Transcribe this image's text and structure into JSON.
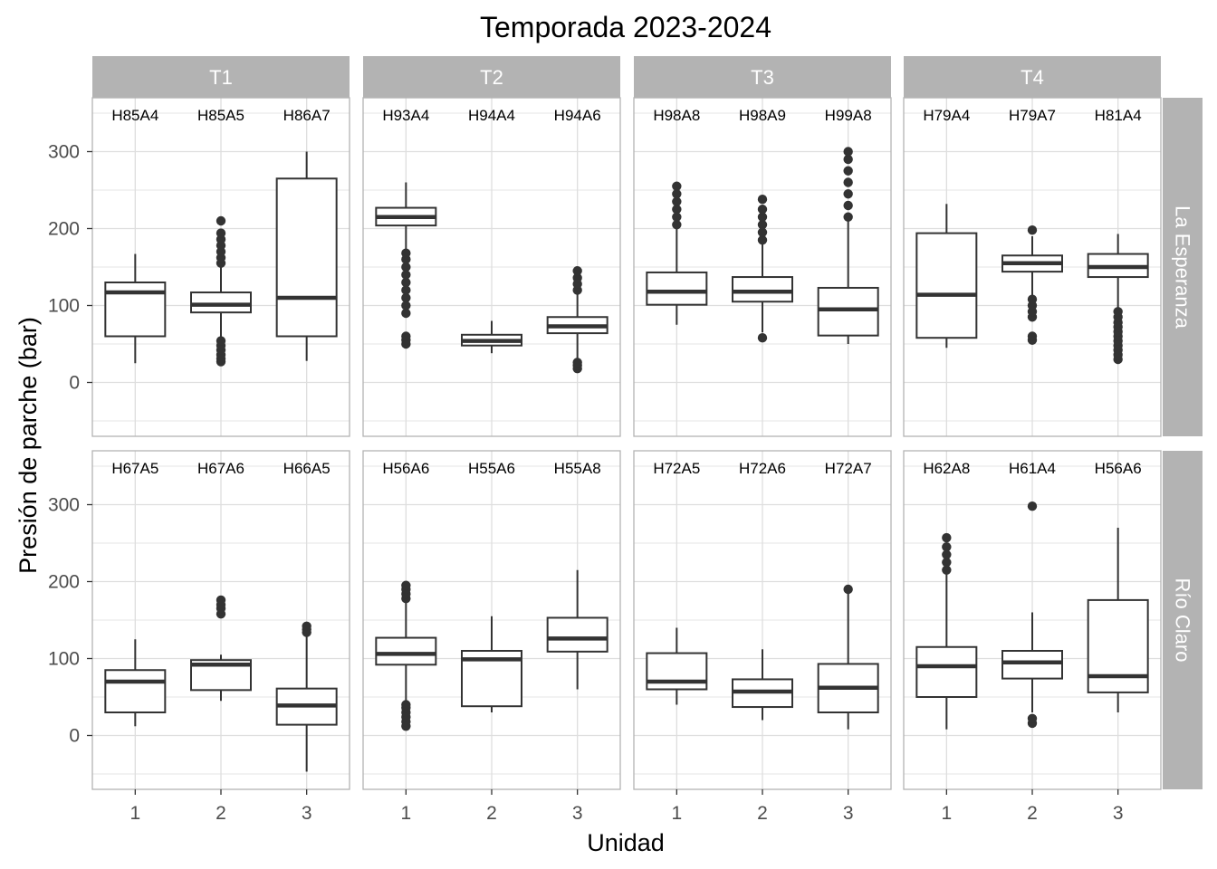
{
  "chart_data": {
    "type": "boxplot",
    "title": "Temporada 2023-2024",
    "xlabel": "Unidad",
    "ylabel": "Presión de parche (bar)",
    "ylim": [
      -70,
      370
    ],
    "yticks": [
      0,
      100,
      200,
      300
    ],
    "x_categories": [
      "1",
      "2",
      "3"
    ],
    "col_facets": [
      "T1",
      "T2",
      "T3",
      "T4"
    ],
    "row_facets": [
      "La Esperanza",
      "Río Claro"
    ],
    "grid": true,
    "colors": {
      "strip_bg": "#b3b3b3",
      "strip_text": "#ffffff",
      "box_line": "#333333",
      "grid": "#dedede",
      "panel_border": "#b3b3b3",
      "axis_text": "#4d4d4d"
    },
    "panels": [
      {
        "row": "La Esperanza",
        "col": "T1",
        "boxes": [
          {
            "unit": "1",
            "label": "H85A4",
            "min": 25,
            "q1": 60,
            "median": 117,
            "q3": 130,
            "max": 167,
            "outliers": []
          },
          {
            "unit": "2",
            "label": "H85A5",
            "min": 33,
            "q1": 91,
            "median": 101,
            "q3": 117,
            "max": 152,
            "outliers": [
              27,
              31,
              36,
              42,
              48,
              54,
              155,
              162,
              170,
              178,
              186,
              194,
              210
            ]
          },
          {
            "unit": "3",
            "label": "H86A7",
            "min": 28,
            "q1": 60,
            "median": 110,
            "q3": 265,
            "max": 300,
            "outliers": []
          }
        ]
      },
      {
        "row": "La Esperanza",
        "col": "T2",
        "boxes": [
          {
            "unit": "1",
            "label": "H93A4",
            "min": 170,
            "q1": 204,
            "median": 215,
            "q3": 227,
            "max": 260,
            "outliers": [
              50,
              55,
              60,
              90,
              100,
              110,
              120,
              130,
              140,
              150,
              160,
              168
            ]
          },
          {
            "unit": "2",
            "label": "H94A4",
            "min": 38,
            "q1": 48,
            "median": 54,
            "q3": 62,
            "max": 80,
            "outliers": []
          },
          {
            "unit": "3",
            "label": "H94A6",
            "min": 30,
            "q1": 64,
            "median": 73,
            "q3": 85,
            "max": 115,
            "outliers": [
              18,
              22,
              26,
              120,
              128,
              136,
              145
            ]
          }
        ]
      },
      {
        "row": "La Esperanza",
        "col": "T3",
        "boxes": [
          {
            "unit": "1",
            "label": "H98A8",
            "min": 75,
            "q1": 101,
            "median": 118,
            "q3": 143,
            "max": 200,
            "outliers": [
              205,
              215,
              225,
              235,
              245,
              255
            ]
          },
          {
            "unit": "2",
            "label": "H98A9",
            "min": 65,
            "q1": 105,
            "median": 118,
            "q3": 137,
            "max": 185,
            "outliers": [
              58,
              185,
              195,
              205,
              215,
              225,
              238
            ]
          },
          {
            "unit": "3",
            "label": "H99A8",
            "min": 50,
            "q1": 61,
            "median": 95,
            "q3": 123,
            "max": 210,
            "outliers": [
              215,
              230,
              245,
              260,
              275,
              290,
              300
            ]
          }
        ]
      },
      {
        "row": "La Esperanza",
        "col": "T4",
        "boxes": [
          {
            "unit": "1",
            "label": "H79A4",
            "min": 45,
            "q1": 58,
            "median": 114,
            "q3": 194,
            "max": 232,
            "outliers": []
          },
          {
            "unit": "2",
            "label": "H79A7",
            "min": 110,
            "q1": 144,
            "median": 155,
            "q3": 165,
            "max": 190,
            "outliers": [
              55,
              60,
              85,
              92,
              100,
              108,
              198
            ]
          },
          {
            "unit": "3",
            "label": "H81A4",
            "min": 95,
            "q1": 137,
            "median": 150,
            "q3": 167,
            "max": 193,
            "outliers": [
              30,
              36,
              42,
              48,
              54,
              60,
              66,
              72,
              78,
              85,
              92
            ]
          }
        ]
      },
      {
        "row": "Río Claro",
        "col": "T1",
        "boxes": [
          {
            "unit": "1",
            "label": "H67A5",
            "min": 12,
            "q1": 30,
            "median": 70,
            "q3": 85,
            "max": 125,
            "outliers": []
          },
          {
            "unit": "2",
            "label": "H67A6",
            "min": 45,
            "q1": 59,
            "median": 92,
            "q3": 98,
            "max": 105,
            "outliers": [
              158,
              165,
              170,
              176
            ]
          },
          {
            "unit": "3",
            "label": "H66A5",
            "min": -47,
            "q1": 14,
            "median": 39,
            "q3": 61,
            "max": 130,
            "outliers": [
              134,
              138,
              142
            ]
          }
        ]
      },
      {
        "row": "Río Claro",
        "col": "T2",
        "boxes": [
          {
            "unit": "1",
            "label": "H56A6",
            "min": 45,
            "q1": 92,
            "median": 106,
            "q3": 127,
            "max": 175,
            "outliers": [
              12,
              18,
              24,
              30,
              36,
              40,
              178,
              184,
              190,
              195
            ]
          },
          {
            "unit": "2",
            "label": "H55A6",
            "min": 30,
            "q1": 38,
            "median": 99,
            "q3": 110,
            "max": 155,
            "outliers": []
          },
          {
            "unit": "3",
            "label": "H55A8",
            "min": 60,
            "q1": 109,
            "median": 126,
            "q3": 153,
            "max": 215,
            "outliers": []
          }
        ]
      },
      {
        "row": "Río Claro",
        "col": "T3",
        "boxes": [
          {
            "unit": "1",
            "label": "H72A5",
            "min": 40,
            "q1": 60,
            "median": 70,
            "q3": 107,
            "max": 140,
            "outliers": []
          },
          {
            "unit": "2",
            "label": "H72A6",
            "min": 20,
            "q1": 37,
            "median": 57,
            "q3": 73,
            "max": 112,
            "outliers": []
          },
          {
            "unit": "3",
            "label": "H72A7",
            "min": 8,
            "q1": 30,
            "median": 62,
            "q3": 93,
            "max": 185,
            "outliers": [
              190
            ]
          }
        ]
      },
      {
        "row": "Río Claro",
        "col": "T4",
        "boxes": [
          {
            "unit": "1",
            "label": "H62A8",
            "min": 8,
            "q1": 50,
            "median": 90,
            "q3": 115,
            "max": 210,
            "outliers": [
              215,
              225,
              235,
              245,
              257
            ]
          },
          {
            "unit": "2",
            "label": "H61A4",
            "min": 30,
            "q1": 74,
            "median": 95,
            "q3": 110,
            "max": 160,
            "outliers": [
              16,
              22,
              298
            ]
          },
          {
            "unit": "3",
            "label": "H56A6",
            "min": 30,
            "q1": 56,
            "median": 77,
            "q3": 176,
            "max": 270,
            "outliers": []
          }
        ]
      }
    ]
  }
}
